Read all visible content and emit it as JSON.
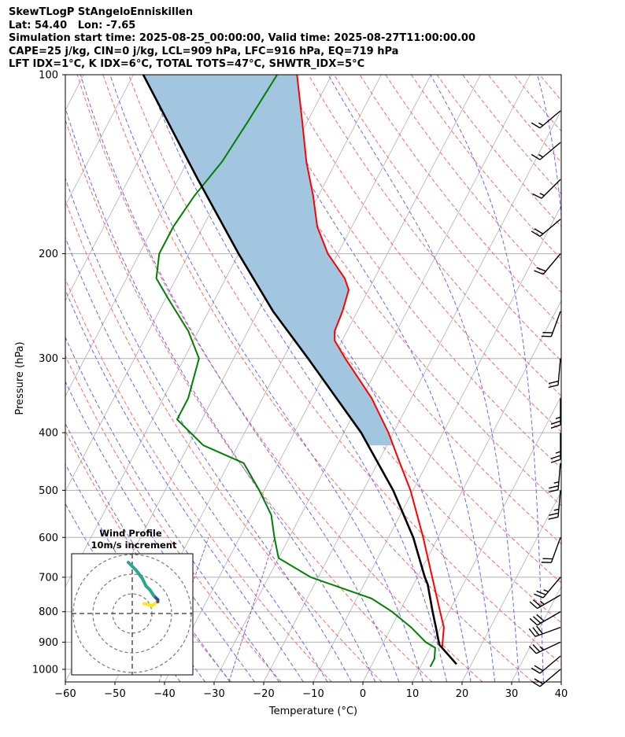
{
  "header": {
    "line1": "SkewTLogP StAngeloEnniskillen",
    "line2": "Lat: 54.40   Lon: -7.65",
    "line3": "Simulation start time: 2025-08-25_00:00:00, Valid time: 2025-08-27T11:00:00.00",
    "line4": "CAPE=25 j/kg, CIN=0 j/kg, LCL=909 hPa, LFC=916 hPa, EQ=719 hPa",
    "line5": "LFT IDX=1°C, K IDX=6°C, TOTAL TOTS=47°C, SHWTR_IDX=5°C"
  },
  "colors": {
    "temperature": "#ff0000",
    "dewpoint": "#008000",
    "parcel": "#000000",
    "cape_fill": "#a3c6e0",
    "dry_adiabat": "#ff6666",
    "moist_adiabat": "#6666ff",
    "isotherm": "#b0b0b0",
    "mixing_ratio": "#9b59b6"
  },
  "chart_data": {
    "type": "skewt",
    "title": "SkewTLogP StAngeloEnniskillen",
    "xlabel": "Temperature (°C)",
    "ylabel": "Pressure (hPa)",
    "xlim": [
      -60,
      40
    ],
    "ylim": [
      1050,
      100
    ],
    "x_ticks": [
      -60,
      -50,
      -40,
      -30,
      -20,
      -10,
      0,
      10,
      20,
      30,
      40
    ],
    "x_tick_labels": [
      "−60",
      "−50",
      "−40",
      "−30",
      "−20",
      "−10",
      "0",
      "10",
      "20",
      "30",
      "40"
    ],
    "y_ticks": [
      100,
      200,
      300,
      400,
      500,
      600,
      700,
      800,
      900,
      1000
    ],
    "temperature_profile": [
      {
        "p": 980,
        "t": 17.0
      },
      {
        "p": 920,
        "t": 12.4
      },
      {
        "p": 850,
        "t": 10.6
      },
      {
        "p": 800,
        "t": 8.2
      },
      {
        "p": 700,
        "t": 3.0
      },
      {
        "p": 600,
        "t": -3.0
      },
      {
        "p": 500,
        "t": -10.5
      },
      {
        "p": 450,
        "t": -15.5
      },
      {
        "p": 400,
        "t": -21.0
      },
      {
        "p": 350,
        "t": -28.0
      },
      {
        "p": 300,
        "t": -37.5
      },
      {
        "p": 280,
        "t": -41.5
      },
      {
        "p": 270,
        "t": -42.5
      },
      {
        "p": 250,
        "t": -43.0
      },
      {
        "p": 230,
        "t": -44.0
      },
      {
        "p": 220,
        "t": -46.0
      },
      {
        "p": 200,
        "t": -52.0
      },
      {
        "p": 180,
        "t": -57.0
      },
      {
        "p": 160,
        "t": -61.0
      },
      {
        "p": 140,
        "t": -66.0
      },
      {
        "p": 120,
        "t": -71.0
      },
      {
        "p": 100,
        "t": -77.0
      }
    ],
    "dewpoint_profile": [
      {
        "p": 990,
        "d": 12.0
      },
      {
        "p": 960,
        "d": 12.0
      },
      {
        "p": 920,
        "d": 11.0
      },
      {
        "p": 900,
        "d": 8.5
      },
      {
        "p": 850,
        "d": 4.0
      },
      {
        "p": 800,
        "d": -1.5
      },
      {
        "p": 760,
        "d": -7.0
      },
      {
        "p": 700,
        "d": -21.5
      },
      {
        "p": 650,
        "d": -30.0
      },
      {
        "p": 600,
        "d": -33.0
      },
      {
        "p": 550,
        "d": -36.0
      },
      {
        "p": 500,
        "d": -41.0
      },
      {
        "p": 450,
        "d": -47.0
      },
      {
        "p": 420,
        "d": -57.0
      },
      {
        "p": 380,
        "d": -65.0
      },
      {
        "p": 350,
        "d": -65.0
      },
      {
        "p": 300,
        "d": -67.0
      },
      {
        "p": 270,
        "d": -72.0
      },
      {
        "p": 240,
        "d": -79.0
      },
      {
        "p": 220,
        "d": -84.0
      },
      {
        "p": 200,
        "d": -86.0
      },
      {
        "p": 180,
        "d": -86.0
      },
      {
        "p": 160,
        "d": -85.0
      },
      {
        "p": 140,
        "d": -83.0
      },
      {
        "p": 120,
        "d": -82.0
      },
      {
        "p": 100,
        "d": -81.0
      }
    ],
    "parcel_profile": [
      {
        "p": 980,
        "t": 17.0
      },
      {
        "p": 909,
        "t": 11.5
      },
      {
        "p": 850,
        "t": 9.0
      },
      {
        "p": 800,
        "t": 6.7
      },
      {
        "p": 719,
        "t": 2.8
      },
      {
        "p": 700,
        "t": 1.5
      },
      {
        "p": 600,
        "t": -5.0
      },
      {
        "p": 500,
        "t": -14.0
      },
      {
        "p": 400,
        "t": -26.5
      },
      {
        "p": 300,
        "t": -45.0
      },
      {
        "p": 250,
        "t": -57.0
      },
      {
        "p": 200,
        "t": -70.0
      },
      {
        "p": 150,
        "t": -86.0
      },
      {
        "p": 100,
        "t": -108.0
      }
    ],
    "wind_barbs": [
      {
        "p": 1000,
        "speed_kt": 20,
        "dir": 230
      },
      {
        "p": 950,
        "speed_kt": 20,
        "dir": 230
      },
      {
        "p": 900,
        "speed_kt": 25,
        "dir": 245
      },
      {
        "p": 850,
        "speed_kt": 30,
        "dir": 250
      },
      {
        "p": 800,
        "speed_kt": 30,
        "dir": 240
      },
      {
        "p": 750,
        "speed_kt": 25,
        "dir": 240
      },
      {
        "p": 700,
        "speed_kt": 25,
        "dir": 220
      },
      {
        "p": 600,
        "speed_kt": 20,
        "dir": 200
      },
      {
        "p": 500,
        "speed_kt": 25,
        "dir": 185
      },
      {
        "p": 450,
        "speed_kt": 25,
        "dir": 185
      },
      {
        "p": 400,
        "speed_kt": 25,
        "dir": 180
      },
      {
        "p": 350,
        "speed_kt": 25,
        "dir": 180
      },
      {
        "p": 300,
        "speed_kt": 20,
        "dir": 185
      },
      {
        "p": 250,
        "speed_kt": 20,
        "dir": 200
      },
      {
        "p": 200,
        "speed_kt": 20,
        "dir": 220
      },
      {
        "p": 175,
        "speed_kt": 20,
        "dir": 230
      },
      {
        "p": 150,
        "speed_kt": 15,
        "dir": 225
      },
      {
        "p": 130,
        "speed_kt": 15,
        "dir": 230
      },
      {
        "p": 115,
        "speed_kt": 15,
        "dir": 230
      }
    ],
    "hodograph": {
      "title": "Wind Profile",
      "subtitle": "10m/s increment",
      "rings_ms": [
        10,
        20,
        30
      ],
      "points": [
        {
          "u": 6,
          "v": 5
        },
        {
          "u": 10,
          "v": 4
        },
        {
          "u": 13,
          "v": 6
        },
        {
          "u": 13,
          "v": 7
        },
        {
          "u": 11,
          "v": 9
        },
        {
          "u": 9,
          "v": 12
        },
        {
          "u": 7,
          "v": 14
        },
        {
          "u": 5,
          "v": 18
        },
        {
          "u": 2,
          "v": 22
        },
        {
          "u": -2,
          "v": 26
        }
      ]
    }
  }
}
